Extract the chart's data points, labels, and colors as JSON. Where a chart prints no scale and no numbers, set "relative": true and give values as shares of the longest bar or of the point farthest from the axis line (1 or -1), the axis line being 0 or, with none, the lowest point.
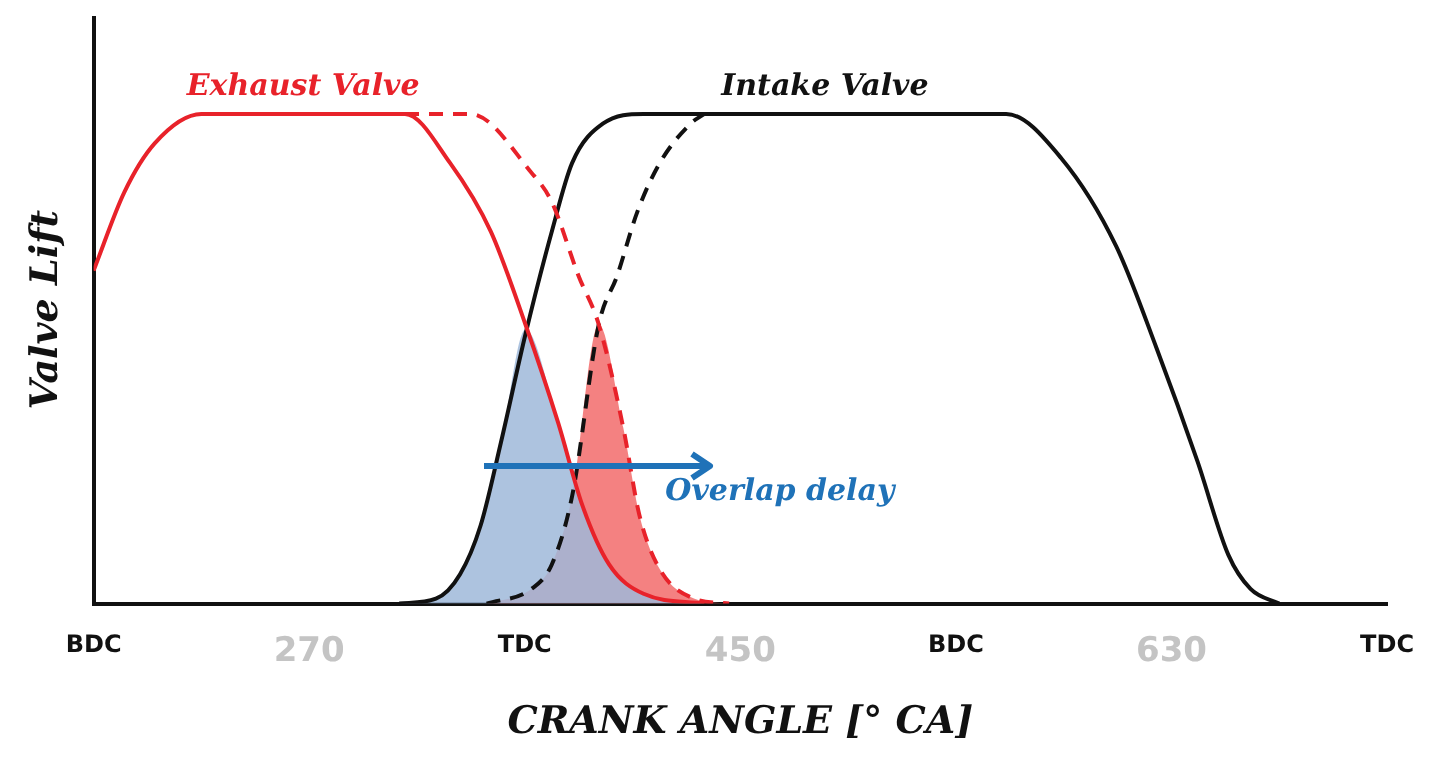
{
  "chart_data": {
    "type": "line",
    "relative": true,
    "xlabel": "CRANK ANGLE [° CA]",
    "ylabel": "Valve Lift",
    "xlim": [
      180,
      720
    ],
    "xticks": [
      {
        "value": 180,
        "label": "BDC"
      },
      270,
      {
        "value": 360,
        "label": "TDC"
      },
      450,
      {
        "value": 540,
        "label": "BDC"
      },
      630,
      {
        "value": 720,
        "label": "TDC"
      }
    ],
    "grid": false,
    "legend": false,
    "annotations": [
      "Overlap delay"
    ],
    "series": [
      {
        "type": "area",
        "color": "#9fb8d9",
        "x": [
          307.6,
          322.9,
          333,
          341.6,
          350.1,
          360.3,
          373.9,
          384.1,
          395.2,
          409.6,
          435
        ],
        "values": [
          0,
          0.01,
          0.06,
          0.16,
          0.33,
          0.56,
          0.37,
          0.2,
          0.08,
          0.02,
          0
        ]
      },
      {
        "type": "area",
        "color": "#f26b6b",
        "x": [
          344.1,
          362.8,
          371.3,
          379.8,
          390.9,
          401.1,
          407.9,
          416.4,
          430.9,
          445.3
        ],
        "values": [
          0,
          0.03,
          0.08,
          0.22,
          0.57,
          0.36,
          0.18,
          0.07,
          0.01,
          0
        ]
      },
      {
        "name": "Exhaust Valve",
        "type": "line",
        "line_style": "solid",
        "color": "#e8222a",
        "x": [
          180,
          192.8,
          205.5,
          225,
          310,
          328.8,
          345.8,
          360.3,
          373.9,
          384.1,
          395.2,
          409.6,
          435
        ],
        "values": [
          0.68,
          0.84,
          0.94,
          1,
          1,
          0.9,
          0.76,
          0.57,
          0.37,
          0.2,
          0.08,
          0.02,
          0
        ]
      },
      {
        "type": "line",
        "line_style": "dashed",
        "color": "#e8222a",
        "x": [
          310,
          337.3,
          362.8,
          371.3,
          382.4,
          390.9,
          401.1,
          407.9,
          416.4,
          430.9,
          445.3
        ],
        "values": [
          1,
          1,
          0.88,
          0.82,
          0.67,
          0.57,
          0.36,
          0.18,
          0.07,
          0.01,
          0
        ]
      },
      {
        "name": "Intake Valve",
        "type": "line",
        "line_style": "solid",
        "color": "#111111",
        "x": [
          307.6,
          322.9,
          333,
          341.6,
          350.1,
          360.3,
          371.3,
          379.8,
          392.6,
          409.6,
          561,
          583.9,
          606.9,
          623.9,
          640.9,
          653.7,
          663,
          675
        ],
        "values": [
          0,
          0.01,
          0.06,
          0.16,
          0.33,
          0.55,
          0.76,
          0.9,
          0.98,
          1,
          1,
          0.91,
          0.73,
          0.52,
          0.29,
          0.1,
          0.03,
          0
        ]
      },
      {
        "type": "line",
        "line_style": "dashed",
        "color": "#111111",
        "x": [
          344.1,
          362.8,
          371.3,
          379.8,
          390.9,
          398.6,
          407,
          416.4,
          429.2,
          435
        ],
        "values": [
          0,
          0.03,
          0.08,
          0.22,
          0.57,
          0.67,
          0.8,
          0.9,
          0.98,
          1
        ]
      }
    ]
  }
}
